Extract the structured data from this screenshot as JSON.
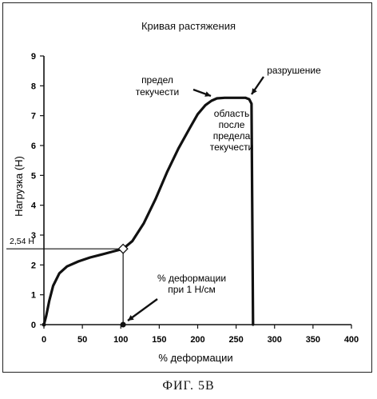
{
  "figure_caption": "ФИГ. 5В",
  "chart_data": {
    "type": "line",
    "title": "Кривая растяжения",
    "xlabel": "% деформации",
    "ylabel": "Нагрузка (Н)",
    "xlim": [
      0,
      400
    ],
    "ylim": [
      0,
      9
    ],
    "x_ticks": [
      0,
      50,
      100,
      150,
      200,
      250,
      300,
      350,
      400
    ],
    "y_ticks": [
      0,
      1,
      2,
      3,
      4,
      5,
      6,
      7,
      8,
      9
    ],
    "grid": false,
    "series": [
      {
        "x": [
          0,
          3,
          7,
          12,
          20,
          30,
          45,
          60,
          75,
          90,
          103,
          115,
          130,
          145,
          160,
          175,
          190,
          200,
          210,
          218,
          225,
          235,
          245,
          255,
          262,
          267,
          270,
          272
        ],
        "y": [
          0,
          0.3,
          0.8,
          1.3,
          1.72,
          1.95,
          2.12,
          2.25,
          2.35,
          2.45,
          2.54,
          2.8,
          3.4,
          4.2,
          5.1,
          5.9,
          6.6,
          7.05,
          7.35,
          7.5,
          7.58,
          7.6,
          7.6,
          7.6,
          7.6,
          7.55,
          7.4,
          0
        ]
      }
    ],
    "marked_point": {
      "x": 103,
      "y": 2.54,
      "label": "2,54 Н"
    },
    "strain_point": {
      "x": 103,
      "y": 0
    },
    "annotations": {
      "yield": [
        "предел",
        "текучести"
      ],
      "post_yield": [
        "область",
        "после",
        "предела",
        "текучести"
      ],
      "failure": "разрушение",
      "strain_at": [
        "% деформации",
        "при 1 Н/см"
      ]
    }
  }
}
